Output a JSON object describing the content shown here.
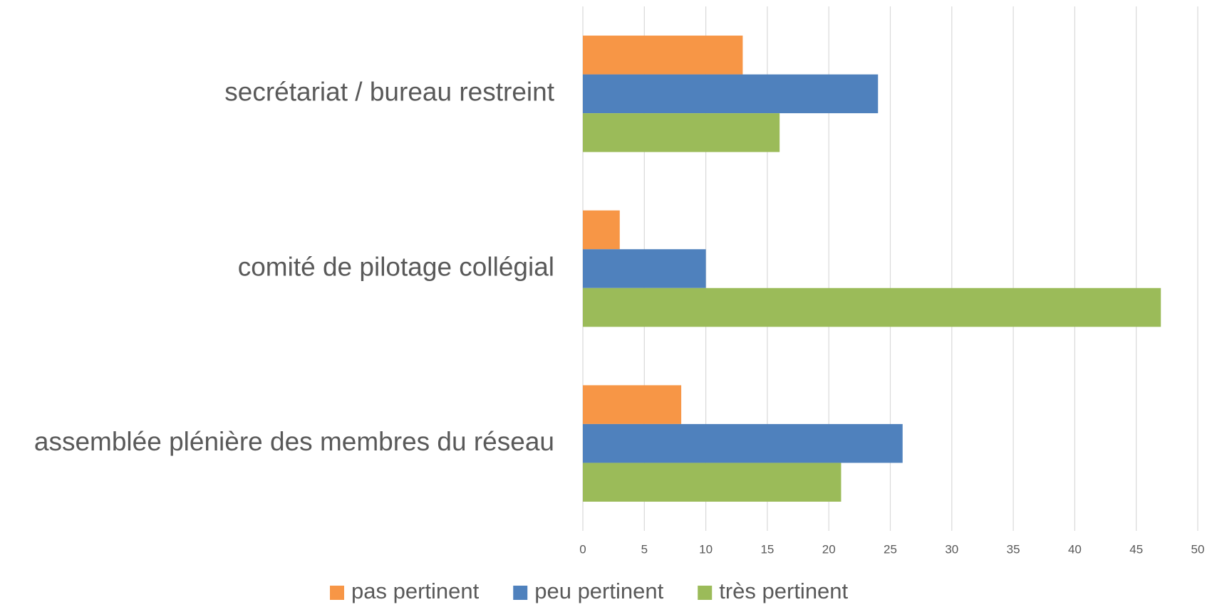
{
  "chart_data": {
    "type": "bar",
    "orientation": "horizontal",
    "categories": [
      "secrétariat / bureau restreint",
      "comité de pilotage collégial",
      "assemblée plénière des membres du réseau"
    ],
    "series": [
      {
        "name": "pas pertinent",
        "color": "#f79646",
        "values": [
          13,
          3,
          8
        ]
      },
      {
        "name": "peu pertinent",
        "color": "#4f81bd",
        "values": [
          24,
          10,
          26
        ]
      },
      {
        "name": "très pertinent",
        "color": "#9bbb59",
        "values": [
          16,
          47,
          21
        ]
      }
    ],
    "xlim": [
      0,
      50
    ],
    "xticks": [
      0,
      5,
      10,
      15,
      20,
      25,
      30,
      35,
      40,
      45,
      50
    ],
    "grid": true,
    "legend": "bottom"
  }
}
